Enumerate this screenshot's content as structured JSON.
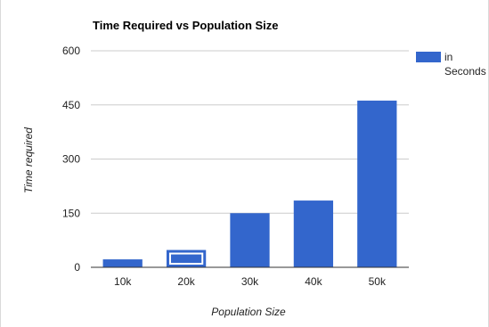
{
  "chart_data": {
    "type": "bar",
    "title": "Time Required vs Population Size",
    "xlabel": "Population Size",
    "ylabel": "Time required",
    "categories": [
      "10k",
      "20k",
      "30k",
      "40k",
      "50k"
    ],
    "series": [
      {
        "name": "in Seconds",
        "values": [
          22,
          48,
          150,
          185,
          462
        ]
      }
    ],
    "ylim": [
      0,
      600
    ],
    "yticks": [
      0,
      150,
      300,
      450,
      600
    ],
    "grid": true,
    "legend_position": "right",
    "selected_category": "20k",
    "colors": {
      "bar": "#3366cc",
      "grid": "#cccccc",
      "axis": "#333333",
      "selection_border": "#ffffff"
    }
  }
}
